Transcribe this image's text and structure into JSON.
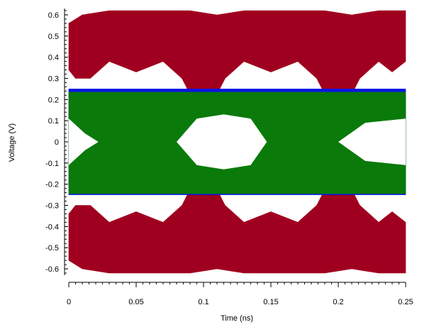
{
  "chart_data": {
    "type": "area",
    "title": "",
    "xlabel": "Time   (ns)",
    "ylabel": "Voltage   (V)",
    "xlim": [
      0,
      0.25
    ],
    "ylim": [
      -0.63,
      0.63
    ],
    "grid": false,
    "x_ticks": [
      0,
      0.05,
      0.1,
      0.15,
      0.2,
      0.25
    ],
    "x_tick_labels": [
      "0",
      "0.05",
      "0.1",
      "0.15",
      "0.2",
      "0.25"
    ],
    "y_ticks": [
      0.6,
      0.5,
      0.4,
      0.3,
      0.2,
      0.1,
      0,
      -0.1,
      -0.2,
      -0.3,
      -0.4,
      -0.5,
      -0.6
    ],
    "y_tick_labels": [
      "0.6",
      "0.5",
      "0.4",
      "0.3",
      "0.2",
      "0.1",
      "0",
      "-0.1",
      "-0.2",
      "-0.3",
      "-0.4",
      "-0.5",
      "-0.6"
    ],
    "series": [
      {
        "color": "#a0001f",
        "bands": [
          [
            [
              0,
              0.56
            ],
            [
              0.01,
              0.6
            ],
            [
              0.03,
              0.62
            ],
            [
              0.09,
              0.62
            ],
            [
              0.11,
              0.6
            ],
            [
              0.13,
              0.62
            ],
            [
              0.19,
              0.62
            ],
            [
              0.21,
              0.6
            ],
            [
              0.23,
              0.62
            ],
            [
              0.25,
              0.62
            ],
            [
              0.25,
              0.38
            ],
            [
              0.24,
              0.33
            ],
            [
              0.23,
              0.38
            ],
            [
              0.216,
              0.3
            ],
            [
              0.2,
              0.1
            ],
            [
              0.184,
              0.3
            ],
            [
              0.17,
              0.38
            ],
            [
              0.15,
              0.33
            ],
            [
              0.13,
              0.38
            ],
            [
              0.116,
              0.3
            ],
            [
              0.1,
              0.1
            ],
            [
              0.084,
              0.3
            ],
            [
              0.07,
              0.38
            ],
            [
              0.05,
              0.33
            ],
            [
              0.03,
              0.38
            ],
            [
              0.016,
              0.3
            ],
            [
              0.005,
              0.3
            ],
            [
              0,
              0.34
            ]
          ],
          [
            [
              0,
              -0.56
            ],
            [
              0.01,
              -0.6
            ],
            [
              0.03,
              -0.62
            ],
            [
              0.09,
              -0.62
            ],
            [
              0.11,
              -0.6
            ],
            [
              0.13,
              -0.62
            ],
            [
              0.19,
              -0.62
            ],
            [
              0.21,
              -0.6
            ],
            [
              0.23,
              -0.62
            ],
            [
              0.25,
              -0.62
            ],
            [
              0.25,
              -0.38
            ],
            [
              0.24,
              -0.33
            ],
            [
              0.23,
              -0.38
            ],
            [
              0.216,
              -0.3
            ],
            [
              0.2,
              -0.1
            ],
            [
              0.184,
              -0.3
            ],
            [
              0.17,
              -0.38
            ],
            [
              0.15,
              -0.33
            ],
            [
              0.13,
              -0.38
            ],
            [
              0.116,
              -0.3
            ],
            [
              0.1,
              -0.1
            ],
            [
              0.084,
              -0.3
            ],
            [
              0.07,
              -0.38
            ],
            [
              0.05,
              -0.33
            ],
            [
              0.03,
              -0.38
            ],
            [
              0.016,
              -0.3
            ],
            [
              0.005,
              -0.3
            ],
            [
              0,
              -0.34
            ]
          ],
          [
            [
              0.055,
              0.24
            ],
            [
              0.08,
              0.0
            ],
            [
              0.055,
              -0.24
            ],
            [
              0.05,
              0.0
            ]
          ],
          [
            [
              0.175,
              0.24
            ],
            [
              0.2,
              0.0
            ],
            [
              0.175,
              -0.24
            ],
            [
              0.17,
              0.0
            ]
          ]
        ]
      },
      {
        "color": "#0a14e6",
        "bands": [
          [
            [
              0,
              0.25
            ],
            [
              0.25,
              0.25
            ],
            [
              0.25,
              -0.25
            ],
            [
              0,
              -0.25
            ]
          ]
        ]
      },
      {
        "color": "#0a7a0a",
        "bands": [
          [
            [
              0,
              0.235
            ],
            [
              0.25,
              0.235
            ],
            [
              0.25,
              -0.245
            ],
            [
              0,
              -0.245
            ]
          ]
        ]
      }
    ],
    "eye_openings": [
      [
        [
          0,
          0.11
        ],
        [
          0.012,
          0.04
        ],
        [
          0.022,
          0.0
        ],
        [
          0.012,
          -0.04
        ],
        [
          0,
          -0.11
        ]
      ],
      [
        [
          0.08,
          0.0
        ],
        [
          0.095,
          0.11
        ],
        [
          0.115,
          0.13
        ],
        [
          0.135,
          0.11
        ],
        [
          0.147,
          0.0
        ],
        [
          0.135,
          -0.11
        ],
        [
          0.115,
          -0.13
        ],
        [
          0.095,
          -0.11
        ]
      ],
      [
        [
          0.2,
          0.0
        ],
        [
          0.22,
          0.09
        ],
        [
          0.25,
          0.11
        ],
        [
          0.25,
          -0.11
        ],
        [
          0.22,
          -0.09
        ]
      ]
    ]
  }
}
